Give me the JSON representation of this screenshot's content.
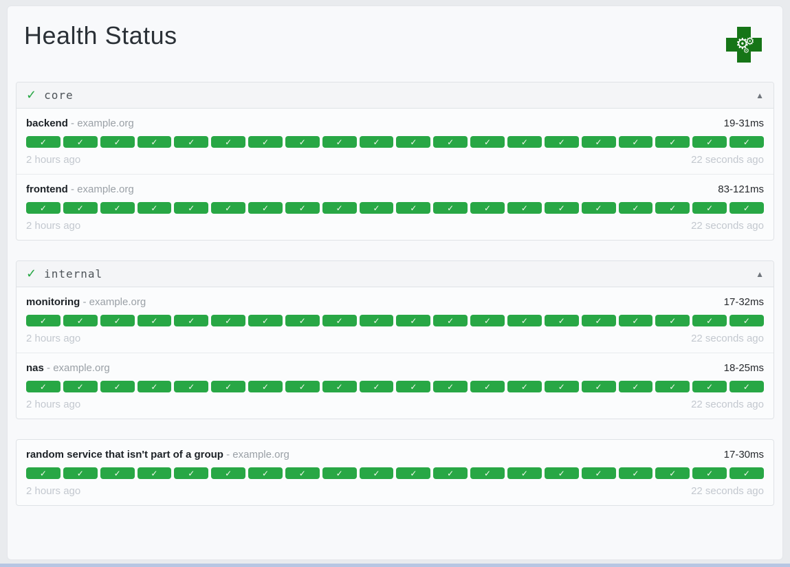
{
  "page": {
    "title": "Health Status",
    "logo_icon": "green-cross-with-gears-icon"
  },
  "strings": {
    "host_separator": "-"
  },
  "icons": {
    "group_status": "✓",
    "collapse": "▲",
    "badge_check": "✓",
    "gear": "⚙"
  },
  "colors": {
    "page_bg": "#e9ebee",
    "card_bg": "#f8f9fb",
    "card_border": "#e4e6ea",
    "group_border": "#dfe2e6",
    "group_header_bg": "#f4f5f7",
    "row_bg": "#fbfcfd",
    "row_divider": "#e8eaed",
    "success_green": "#28a745",
    "logo_green": "#167517",
    "muted_text": "#c3c8cf",
    "bottom_strip": "#b7c6e3"
  },
  "groups": [
    {
      "name": "core",
      "status": "success",
      "collapsed": false,
      "services": [
        {
          "name": "backend",
          "host": "example.org",
          "response_time": "19-31ms",
          "oldest_result": "2 hours ago",
          "newest_result": "22 seconds ago",
          "history": [
            "success",
            "success",
            "success",
            "success",
            "success",
            "success",
            "success",
            "success",
            "success",
            "success",
            "success",
            "success",
            "success",
            "success",
            "success",
            "success",
            "success",
            "success",
            "success",
            "success"
          ]
        },
        {
          "name": "frontend",
          "host": "example.org",
          "response_time": "83-121ms",
          "oldest_result": "2 hours ago",
          "newest_result": "22 seconds ago",
          "history": [
            "success",
            "success",
            "success",
            "success",
            "success",
            "success",
            "success",
            "success",
            "success",
            "success",
            "success",
            "success",
            "success",
            "success",
            "success",
            "success",
            "success",
            "success",
            "success",
            "success"
          ]
        }
      ]
    },
    {
      "name": "internal",
      "status": "success",
      "collapsed": false,
      "services": [
        {
          "name": "monitoring",
          "host": "example.org",
          "response_time": "17-32ms",
          "oldest_result": "2 hours ago",
          "newest_result": "22 seconds ago",
          "history": [
            "success",
            "success",
            "success",
            "success",
            "success",
            "success",
            "success",
            "success",
            "success",
            "success",
            "success",
            "success",
            "success",
            "success",
            "success",
            "success",
            "success",
            "success",
            "success",
            "success"
          ]
        },
        {
          "name": "nas",
          "host": "example.org",
          "response_time": "18-25ms",
          "oldest_result": "2 hours ago",
          "newest_result": "22 seconds ago",
          "history": [
            "success",
            "success",
            "success",
            "success",
            "success",
            "success",
            "success",
            "success",
            "success",
            "success",
            "success",
            "success",
            "success",
            "success",
            "success",
            "success",
            "success",
            "success",
            "success",
            "success"
          ]
        }
      ]
    }
  ],
  "ungrouped_services": [
    {
      "name": "random service that isn't part of a group",
      "host": "example.org",
      "response_time": "17-30ms",
      "oldest_result": "2 hours ago",
      "newest_result": "22 seconds ago",
      "history": [
        "success",
        "success",
        "success",
        "success",
        "success",
        "success",
        "success",
        "success",
        "success",
        "success",
        "success",
        "success",
        "success",
        "success",
        "success",
        "success",
        "success",
        "success",
        "success",
        "success"
      ]
    }
  ]
}
